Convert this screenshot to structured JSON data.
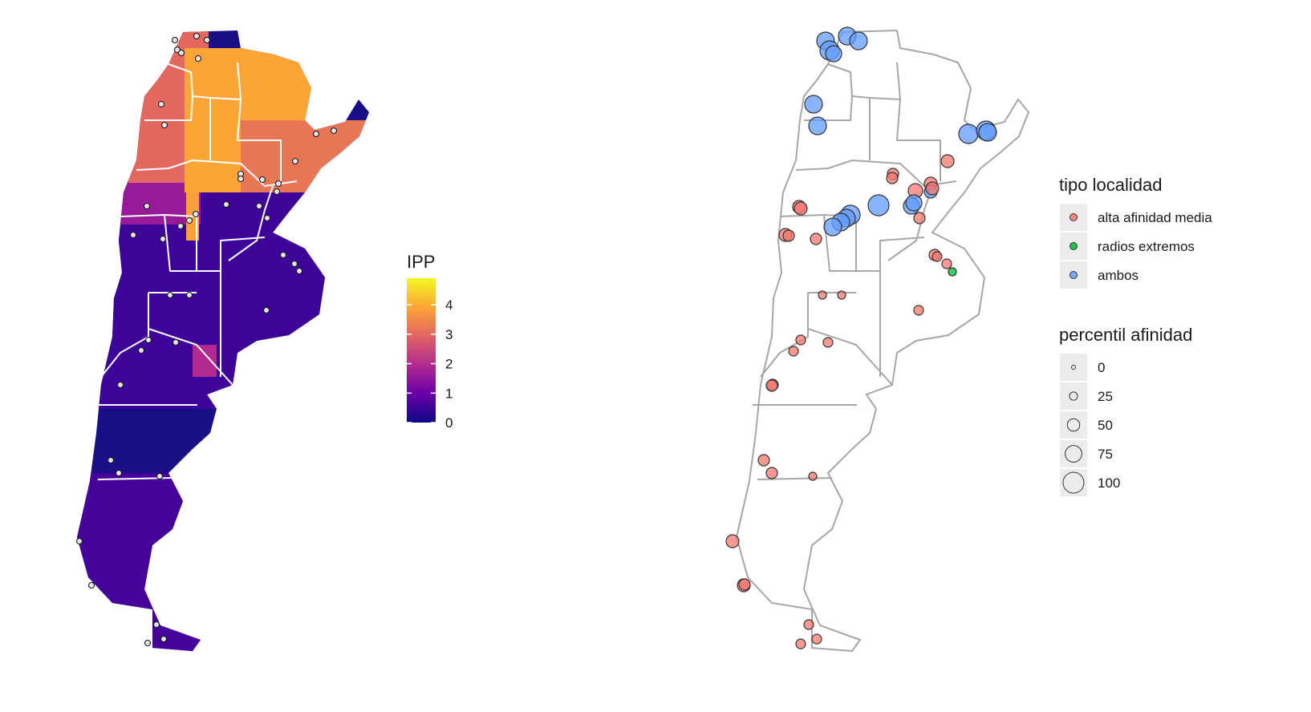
{
  "left_panel": {
    "legend": {
      "title": "IPP",
      "ticks": [
        "0",
        "1",
        "2",
        "3",
        "4"
      ],
      "tick_values": [
        0,
        1,
        2,
        3,
        4
      ],
      "range": [
        0,
        4.9
      ],
      "palette": [
        "#0d0887",
        "#6a00a8",
        "#b12a90",
        "#e16462",
        "#fca636",
        "#f0f921"
      ]
    },
    "fill_color_bands": [
      {
        "region": "north-west",
        "ipp": 3.0
      },
      {
        "region": "north-center",
        "ipp": 3.9
      },
      {
        "region": "north-east",
        "ipp": 3.2
      },
      {
        "region": "central-west",
        "ipp": 1.6
      },
      {
        "region": "central",
        "ipp": 0.5
      },
      {
        "region": "south",
        "ipp": 0.6
      }
    ],
    "locality_marker_color": "#e6e6e6"
  },
  "right_panel": {
    "legend_tipo": {
      "title": "tipo localidad",
      "items": [
        {
          "label": "alta afinidad media",
          "color": "#f8766d"
        },
        {
          "label": "radios extremos",
          "color": "#00ba38"
        },
        {
          "label": "ambos",
          "color": "#619cff"
        }
      ]
    },
    "legend_size": {
      "title": "percentil afinidad",
      "items": [
        {
          "label": "0",
          "value": 0
        },
        {
          "label": "25",
          "value": 25
        },
        {
          "label": "50",
          "value": 50
        },
        {
          "label": "75",
          "value": 75
        },
        {
          "label": "100",
          "value": 100
        }
      ]
    },
    "outline_color": "#a6a6a6"
  }
}
